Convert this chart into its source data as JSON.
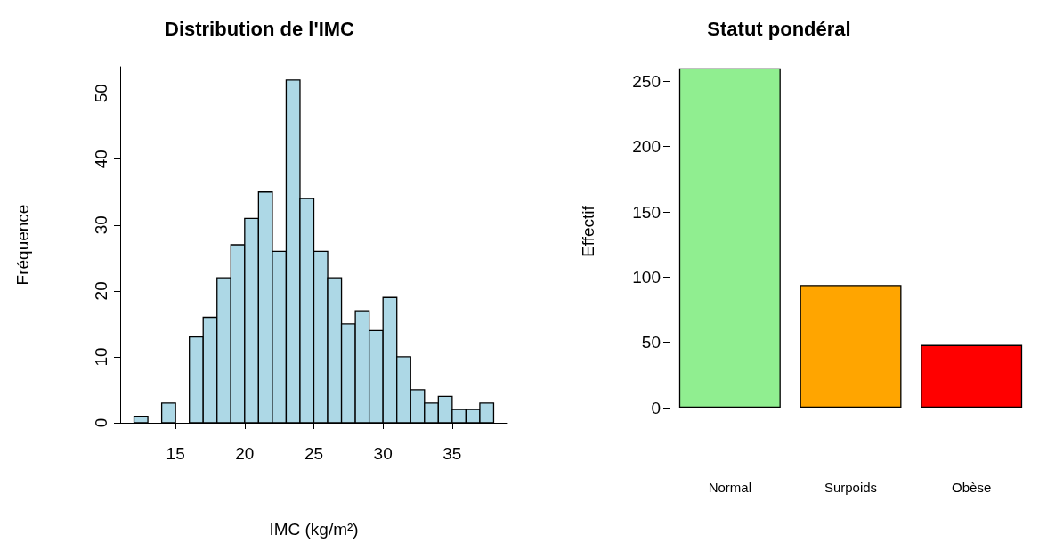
{
  "chart_data": [
    {
      "type": "histogram",
      "title": "Distribution de l'IMC",
      "xlabel": "IMC (kg/m²)",
      "ylabel": "Fréquence",
      "color": "#add8e6",
      "bins": [
        12,
        13,
        14,
        15,
        16,
        17,
        18,
        19,
        20,
        21,
        22,
        23,
        24,
        25,
        26,
        27,
        28,
        29,
        30,
        31,
        32,
        33,
        34,
        35,
        36,
        37,
        38
      ],
      "values": [
        1,
        0,
        3,
        0,
        13,
        16,
        22,
        27,
        31,
        35,
        26,
        52,
        34,
        26,
        22,
        15,
        17,
        14,
        19,
        10,
        5,
        3,
        4,
        2,
        2,
        3
      ],
      "xlim": [
        11,
        39
      ],
      "xticks": [
        15,
        20,
        25,
        30,
        35
      ],
      "ylim": [
        0,
        54
      ],
      "yticks": [
        0,
        10,
        20,
        30,
        40,
        50
      ]
    },
    {
      "type": "bar",
      "title": "Statut pondéral",
      "ylabel": "Effectif",
      "categories": [
        "Normal",
        "Surpoids",
        "Obèse"
      ],
      "values": [
        260,
        94,
        48
      ],
      "colors": [
        "#90ee90",
        "#ffa500",
        "#ff0000"
      ],
      "ylim": [
        0,
        270
      ],
      "yticks": [
        0,
        50,
        100,
        150,
        200,
        250
      ]
    }
  ]
}
